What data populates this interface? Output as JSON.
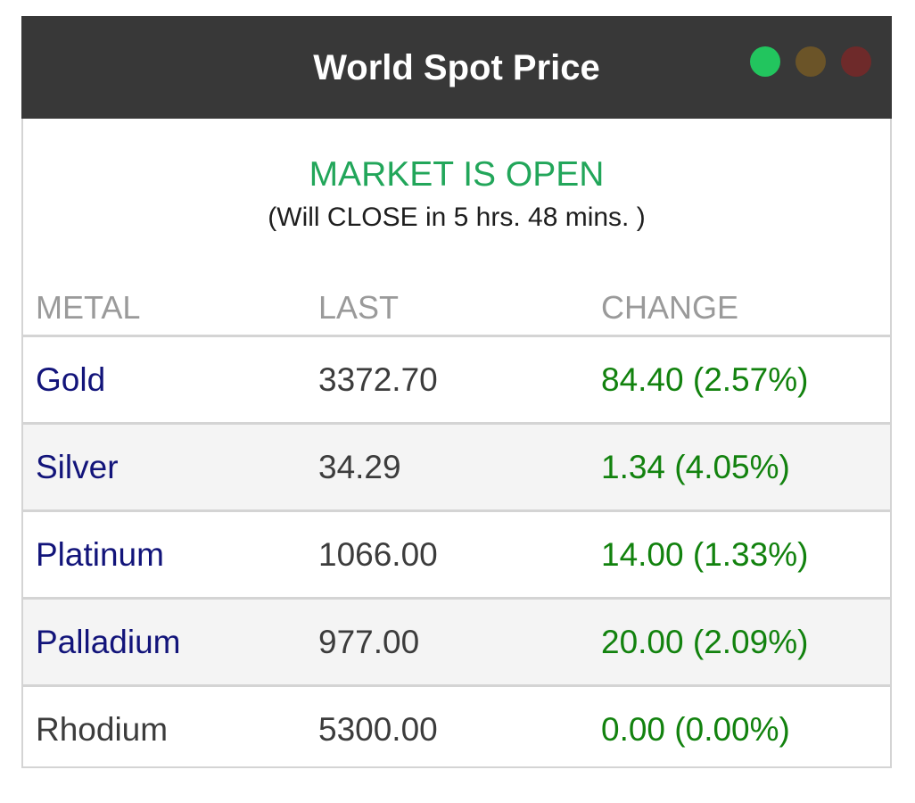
{
  "widget": {
    "title": "World Spot Price",
    "window_dots": [
      {
        "name": "green",
        "color": "#22c55e"
      },
      {
        "name": "brown",
        "color": "#6b5428"
      },
      {
        "name": "red",
        "color": "#6e2a2a"
      }
    ]
  },
  "market": {
    "status": "MARKET IS OPEN",
    "status_color": "#22a65a",
    "close_note": "(Will CLOSE in 5 hrs. 48 mins. )"
  },
  "table": {
    "headers": {
      "metal": "METAL",
      "last": "LAST",
      "change": "CHANGE"
    },
    "rows": [
      {
        "metal": "Gold",
        "last": "3372.70",
        "change": "84.40 (2.57%)"
      },
      {
        "metal": "Silver",
        "last": "34.29",
        "change": "1.34 (4.05%)"
      },
      {
        "metal": "Platinum",
        "last": "1066.00",
        "change": "14.00 (1.33%)"
      },
      {
        "metal": "Palladium",
        "last": "977.00",
        "change": "20.00 (2.09%)"
      },
      {
        "metal": "Rhodium",
        "last": "5300.00",
        "change": "0.00 (0.00%)"
      }
    ]
  },
  "colors": {
    "titlebar": "#383838",
    "metal_link": "#12147a",
    "change_positive": "#12820e"
  }
}
